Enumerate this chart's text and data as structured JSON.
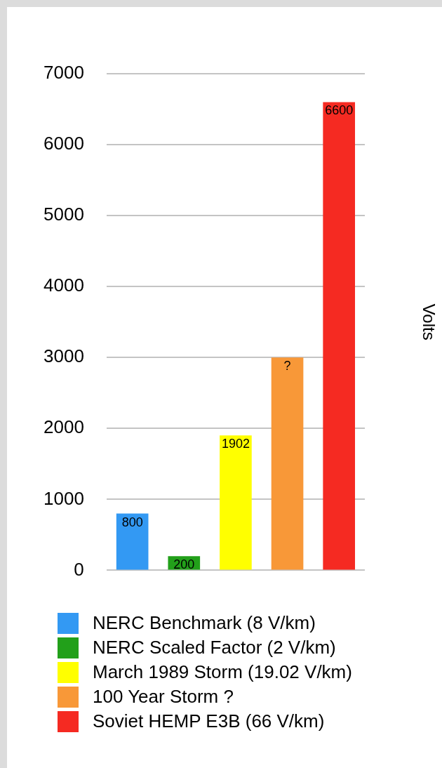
{
  "chart_data": {
    "type": "bar",
    "ylabel": "Volts",
    "categories": [
      null
    ],
    "series": [
      {
        "name": "NERC Benchmark (8 V/km)",
        "color": "#3399f3",
        "values": [
          800
        ],
        "value_labels": [
          "800"
        ]
      },
      {
        "name": "NERC Scaled Factor (2 V/km)",
        "color": "#22a01a",
        "values": [
          200
        ],
        "value_labels": [
          "200"
        ]
      },
      {
        "name": "March 1989 Storm (19.02 V/km)",
        "color": "#ffff00",
        "values": [
          1902
        ],
        "value_labels": [
          "1902"
        ]
      },
      {
        "name": "100 Year Storm ?",
        "color": "#f89838",
        "values": [
          3000
        ],
        "value_labels": [
          "?"
        ]
      },
      {
        "name": "Soviet HEMP E3B (66 V/km)",
        "color": "#f52a22",
        "values": [
          6600
        ],
        "value_labels": [
          "6600"
        ]
      }
    ],
    "ylim": [
      0,
      7000
    ],
    "yticks": [
      0,
      1000,
      2000,
      3000,
      4000,
      5000,
      6000,
      7000
    ],
    "grid": "y",
    "legend": "bottom",
    "tick_labels": "y"
  }
}
